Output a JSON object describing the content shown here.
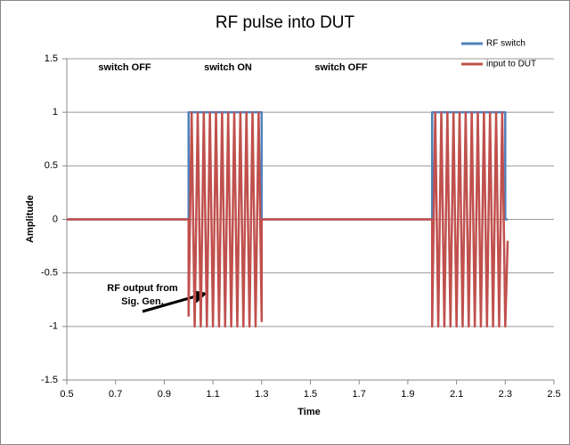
{
  "chart_data": {
    "type": "line",
    "title": "RF pulse into DUT",
    "xlabel": "Time",
    "ylabel": "Amplitude",
    "xlim": [
      0.5,
      2.5
    ],
    "ylim": [
      -1.5,
      1.5
    ],
    "xticks": [
      0.5,
      0.7,
      0.9,
      1.1,
      1.3,
      1.5,
      1.7,
      1.9,
      2.1,
      2.3,
      2.5
    ],
    "yticks": [
      -1.5,
      -1,
      -0.5,
      0,
      0.5,
      1,
      1.5
    ],
    "grid": true,
    "legend": "upper right",
    "annotations": [
      "switch OFF",
      "switch ON",
      "switch OFF",
      [
        "RF output from",
        "Sig. Gen."
      ]
    ],
    "series": [
      {
        "name": "RF switch",
        "color": "#4f81bd",
        "x": [
          0.5,
          1,
          1,
          1.3,
          1.3,
          2,
          2,
          2.3,
          2.3,
          2.31
        ],
        "values": [
          0,
          0,
          1,
          1,
          0,
          0,
          1,
          1,
          0,
          0
        ]
      },
      {
        "name": "input to DUT",
        "color": "#c0504d",
        "x": [
          0.5,
          1,
          1,
          1.0125,
          1.025,
          1.0375,
          1.05,
          1.0625,
          1.075,
          1.0875,
          1.1,
          1.1125,
          1.125,
          1.1375,
          1.15,
          1.1625,
          1.175,
          1.1875,
          1.2,
          1.2125,
          1.225,
          1.2375,
          1.25,
          1.2625,
          1.275,
          1.2875,
          1.3,
          1.3,
          2,
          2,
          2.0125,
          2.025,
          2.0375,
          2.05,
          2.0625,
          2.075,
          2.0875,
          2.1,
          2.1125,
          2.125,
          2.1375,
          2.15,
          2.1625,
          2.175,
          2.1875,
          2.2,
          2.2125,
          2.225,
          2.2375,
          2.25,
          2.2625,
          2.275,
          2.2875,
          2.3,
          2.31
        ],
        "values": [
          0,
          0,
          -0.9,
          1,
          -1,
          1,
          -1,
          1,
          -1,
          1,
          -1,
          1,
          -1,
          1,
          -1,
          1,
          -1,
          1,
          -1,
          1,
          -1,
          1,
          -1,
          1,
          -1,
          1,
          -0.95,
          0,
          0,
          -1,
          1,
          -1,
          1,
          -1,
          1,
          -1,
          1,
          -1,
          1,
          -1,
          1,
          -1,
          1,
          -1,
          1,
          -1,
          1,
          -1,
          1,
          -1,
          1,
          -1,
          1,
          -1,
          -0.2
        ]
      }
    ]
  }
}
